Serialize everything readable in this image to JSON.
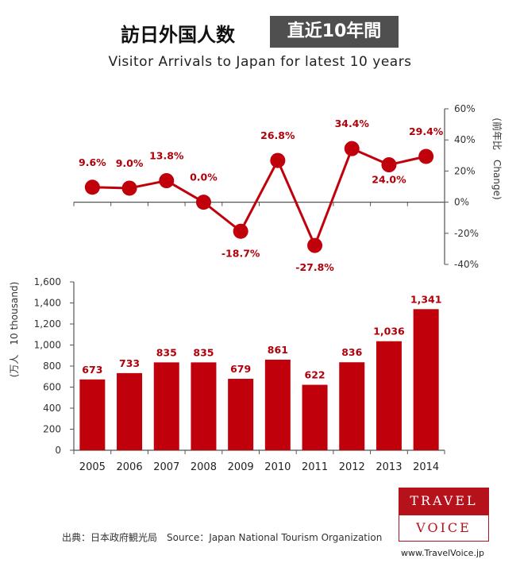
{
  "header": {
    "title_jp": "訪日外国人数",
    "badge": "直近10年間",
    "subtitle": "Visitor Arrivals to Japan for latest 10 years"
  },
  "footer": {
    "source": "出典：日本政府観光局　Source：Japan  National Tourism   Organization",
    "logo_top": "TRAVEL",
    "logo_bottom": "VOICE",
    "url": "www.TravelVoice.jp"
  },
  "colors": {
    "accent": "#c0000b",
    "label": "#b0000a",
    "axis": "#555555"
  },
  "chart_data": [
    {
      "type": "line",
      "categories": [
        "2005",
        "2006",
        "2007",
        "2008",
        "2009",
        "2010",
        "2011",
        "2012",
        "2013",
        "2014"
      ],
      "values": [
        9.6,
        9.0,
        13.8,
        0.0,
        -18.7,
        26.8,
        -27.8,
        34.4,
        24.0,
        29.4
      ],
      "data_labels": [
        "9.6%",
        "9.0%",
        "13.8%",
        "0.0%",
        "-18.7%",
        "26.8%",
        "-27.8%",
        "34.4%",
        "24.0%",
        "29.4%"
      ],
      "ylabel": "(前年比　Change)",
      "ylim": [
        -40,
        60
      ],
      "yticks": [
        60,
        40,
        20,
        0,
        -20,
        -40
      ],
      "ytick_labels": [
        "60%",
        "40%",
        "20%",
        "0%",
        "-20%",
        "-40%"
      ],
      "grid": false,
      "legend": "none"
    },
    {
      "type": "bar",
      "categories": [
        "2005",
        "2006",
        "2007",
        "2008",
        "2009",
        "2010",
        "2011",
        "2012",
        "2013",
        "2014"
      ],
      "values": [
        673,
        733,
        835,
        835,
        679,
        861,
        622,
        836,
        1036,
        1341
      ],
      "data_labels": [
        "673",
        "733",
        "835",
        "835",
        "679",
        "861",
        "622",
        "836",
        "1,036",
        "1,341"
      ],
      "ylabel": "(万人　10 thousand)",
      "ylim": [
        0,
        1600
      ],
      "yticks": [
        0,
        200,
        400,
        600,
        800,
        1000,
        1200,
        1400,
        1600
      ],
      "ytick_labels": [
        "0",
        "200",
        "400",
        "600",
        "800",
        "1,000",
        "1,200",
        "1,400",
        "1,600"
      ],
      "grid": false,
      "legend": "none"
    }
  ]
}
